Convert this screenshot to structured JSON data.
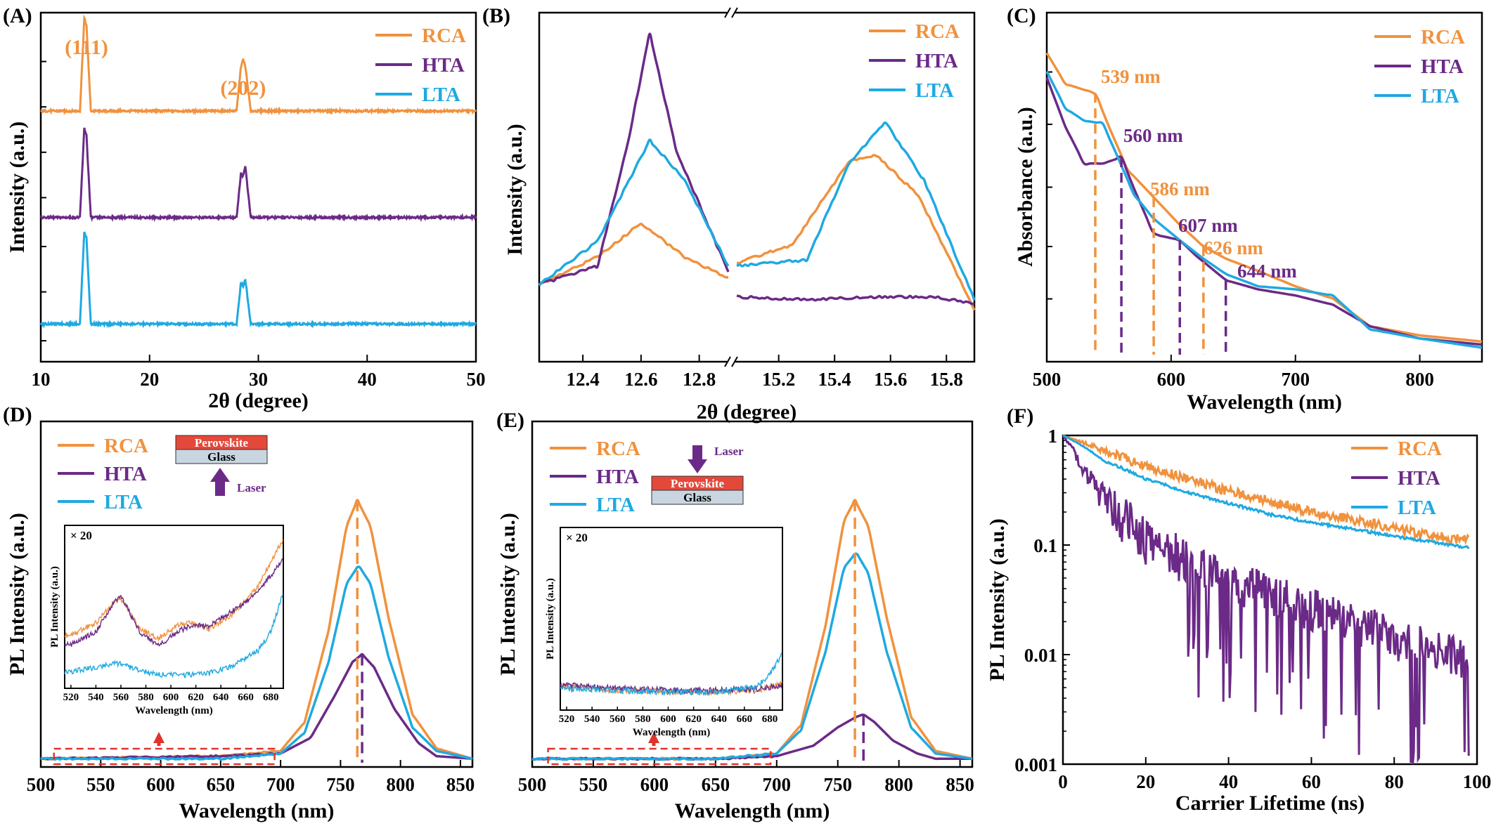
{
  "colors": {
    "RCA": "#f0923e",
    "HTA": "#6b2a87",
    "LTA": "#1fa9e1",
    "dash": "#e0332c",
    "perovskite": "#e4483a",
    "glass": "#c9d5e1"
  },
  "chart_data": [
    {
      "panel": "(A)",
      "type": "line",
      "xlabel": "2θ (degree)",
      "ylabel": "Intensity (a.u.)",
      "xlim": [
        10,
        50
      ],
      "xticks": [
        "10",
        "20",
        "30",
        "40",
        "50"
      ],
      "legend": "top-right",
      "peak_labels": [
        "(111)",
        "(202)"
      ],
      "series": [
        {
          "name": "RCA",
          "x": [
            10,
            13.6,
            14.0,
            14.2,
            14.6,
            28.0,
            28.4,
            28.6,
            28.8,
            29.3,
            50
          ],
          "y": [
            0.73,
            0.73,
            1.0,
            0.98,
            0.73,
            0.73,
            0.86,
            0.88,
            0.86,
            0.73,
            0.73
          ]
        },
        {
          "name": "HTA",
          "x": [
            10,
            13.6,
            14.0,
            14.2,
            14.6,
            28.0,
            28.4,
            28.6,
            28.8,
            29.3,
            50
          ],
          "y": [
            0.42,
            0.42,
            0.68,
            0.66,
            0.42,
            0.42,
            0.55,
            0.54,
            0.57,
            0.42,
            0.42
          ]
        },
        {
          "name": "LTA",
          "x": [
            10,
            13.6,
            14.0,
            14.2,
            14.6,
            28.0,
            28.4,
            28.6,
            28.8,
            29.3,
            50
          ],
          "y": [
            0.11,
            0.11,
            0.38,
            0.36,
            0.11,
            0.11,
            0.23,
            0.22,
            0.24,
            0.11,
            0.11
          ]
        }
      ]
    },
    {
      "panel": "(B)",
      "type": "line",
      "xlabel": "2θ (degree)",
      "ylabel": "Intensity (a.u.)",
      "broken_axis": true,
      "xticks": [
        "12.4",
        "12.6",
        "12.8",
        "15.2",
        "15.4",
        "15.6",
        "15.8"
      ],
      "legend": "top-right",
      "series": [
        {
          "name": "RCA",
          "x": [
            12.25,
            12.45,
            12.6,
            12.75,
            12.9,
            15.05,
            15.25,
            15.45,
            15.55,
            15.7,
            15.9
          ],
          "y": [
            0.16,
            0.25,
            0.36,
            0.25,
            0.18,
            0.23,
            0.29,
            0.56,
            0.58,
            0.45,
            0.08
          ]
        },
        {
          "name": "HTA",
          "x": [
            12.25,
            12.45,
            12.55,
            12.63,
            12.72,
            12.9,
            15.05,
            15.3,
            15.55,
            15.75,
            15.9
          ],
          "y": [
            0.16,
            0.22,
            0.6,
            0.98,
            0.6,
            0.2,
            0.12,
            0.11,
            0.12,
            0.12,
            0.1
          ]
        },
        {
          "name": "LTA",
          "x": [
            12.25,
            12.45,
            12.63,
            12.75,
            12.9,
            15.05,
            15.3,
            15.45,
            15.58,
            15.72,
            15.9
          ],
          "y": [
            0.16,
            0.3,
            0.63,
            0.5,
            0.22,
            0.22,
            0.24,
            0.55,
            0.69,
            0.5,
            0.11
          ]
        }
      ]
    },
    {
      "panel": "(C)",
      "type": "line",
      "xlabel": "Wavelength (nm)",
      "ylabel": "Absorbance (a.u.)",
      "xlim": [
        500,
        850
      ],
      "xticks": [
        "500",
        "600",
        "700",
        "800"
      ],
      "legend": "top-right",
      "annotations": [
        "539 nm",
        "560 nm",
        "586 nm",
        "607 nm",
        "626 nm",
        "644 nm"
      ],
      "annotation_values": [
        539,
        560,
        586,
        607,
        626,
        644
      ],
      "series": [
        {
          "name": "RCA",
          "x": [
            500,
            515,
            530,
            539,
            550,
            565,
            586,
            607,
            626,
            644,
            670,
            700,
            730,
            760,
            800,
            850
          ],
          "y": [
            0.96,
            0.86,
            0.84,
            0.83,
            0.72,
            0.58,
            0.49,
            0.4,
            0.33,
            0.29,
            0.25,
            0.2,
            0.16,
            0.07,
            0.04,
            0.02
          ]
        },
        {
          "name": "HTA",
          "x": [
            500,
            515,
            530,
            545,
            560,
            570,
            586,
            607,
            620,
            644,
            670,
            700,
            730,
            760,
            800,
            850
          ],
          "y": [
            0.88,
            0.72,
            0.6,
            0.6,
            0.62,
            0.52,
            0.37,
            0.35,
            0.3,
            0.22,
            0.19,
            0.17,
            0.14,
            0.07,
            0.03,
            0.01
          ]
        },
        {
          "name": "LTA",
          "x": [
            500,
            515,
            530,
            545,
            555,
            570,
            586,
            607,
            626,
            644,
            670,
            700,
            730,
            760,
            800,
            850
          ],
          "y": [
            0.9,
            0.78,
            0.74,
            0.73,
            0.64,
            0.5,
            0.42,
            0.35,
            0.29,
            0.24,
            0.2,
            0.19,
            0.17,
            0.06,
            0.03,
            0.0
          ]
        }
      ]
    },
    {
      "panel": "(D)",
      "type": "line",
      "xlabel": "Wavelength (nm)",
      "ylabel": "PL Intensity (a.u.)",
      "xlim": [
        500,
        860
      ],
      "xticks": [
        "500",
        "550",
        "600",
        "650",
        "700",
        "750",
        "800",
        "850"
      ],
      "legend": "top-left",
      "schematic": {
        "top": "Perovskite",
        "bottom": "Glass",
        "arrow": "Laser"
      },
      "inset": {
        "multiplier": "× 20",
        "xlabel": "Wavelength (nm)",
        "ylabel": "PL Intensity (a.u.)",
        "xticks": [
          "520",
          "540",
          "560",
          "580",
          "600",
          "620",
          "640",
          "660",
          "680"
        ],
        "series": [
          {
            "name": "RCA",
            "x": [
              520,
              540,
              555,
              560,
              575,
              590,
              605,
              615,
              630,
              650,
              670,
              690
            ],
            "y": [
              0.32,
              0.4,
              0.54,
              0.56,
              0.36,
              0.3,
              0.38,
              0.4,
              0.36,
              0.46,
              0.64,
              0.95
            ]
          },
          {
            "name": "HTA",
            "x": [
              520,
              540,
              555,
              560,
              575,
              590,
              605,
              615,
              630,
              650,
              670,
              690
            ],
            "y": [
              0.26,
              0.34,
              0.54,
              0.58,
              0.34,
              0.25,
              0.34,
              0.38,
              0.38,
              0.48,
              0.6,
              0.82
            ]
          },
          {
            "name": "LTA",
            "x": [
              520,
              540,
              555,
              560,
              575,
              590,
              610,
              630,
              650,
              670,
              680,
              690
            ],
            "y": [
              0.08,
              0.11,
              0.14,
              0.13,
              0.09,
              0.06,
              0.06,
              0.07,
              0.12,
              0.22,
              0.34,
              0.6
            ]
          }
        ]
      },
      "peaks": [
        764,
        768
      ],
      "series": [
        {
          "name": "RCA",
          "x": [
            500,
            650,
            700,
            720,
            740,
            755,
            764,
            775,
            790,
            810,
            830,
            860
          ],
          "y": [
            0.01,
            0.02,
            0.04,
            0.15,
            0.5,
            0.9,
            1.0,
            0.9,
            0.55,
            0.18,
            0.05,
            0.01
          ]
        },
        {
          "name": "HTA",
          "x": [
            500,
            650,
            700,
            725,
            745,
            760,
            768,
            778,
            795,
            815,
            830,
            860
          ],
          "y": [
            0.01,
            0.02,
            0.03,
            0.09,
            0.25,
            0.38,
            0.41,
            0.36,
            0.2,
            0.07,
            0.02,
            0.01
          ]
        },
        {
          "name": "LTA",
          "x": [
            500,
            650,
            700,
            720,
            740,
            755,
            765,
            775,
            790,
            810,
            830,
            860
          ],
          "y": [
            0.01,
            0.01,
            0.03,
            0.11,
            0.38,
            0.68,
            0.75,
            0.68,
            0.4,
            0.13,
            0.04,
            0.01
          ]
        }
      ]
    },
    {
      "panel": "(E)",
      "type": "line",
      "xlabel": "Wavelength (nm)",
      "ylabel": "PL Intensity (a.u.)",
      "xlim": [
        500,
        860
      ],
      "xticks": [
        "500",
        "550",
        "600",
        "650",
        "700",
        "750",
        "800",
        "850"
      ],
      "legend": "top-left",
      "schematic": {
        "top": "Perovskite",
        "bottom": "Glass",
        "arrow": "Laser"
      },
      "inset": {
        "multiplier": "× 20",
        "xlabel": "Wavelength (nm)",
        "ylabel": "PL Intensity (a.u.)",
        "xticks": [
          "520",
          "540",
          "560",
          "580",
          "600",
          "620",
          "640",
          "660",
          "680"
        ],
        "series": [
          {
            "name": "RCA",
            "x": [
              520,
              560,
              600,
              640,
              670,
              690
            ],
            "y": [
              0.11,
              0.09,
              0.08,
              0.08,
              0.09,
              0.13
            ]
          },
          {
            "name": "HTA",
            "x": [
              520,
              560,
              600,
              640,
              670,
              690
            ],
            "y": [
              0.12,
              0.1,
              0.09,
              0.09,
              0.1,
              0.12
            ]
          },
          {
            "name": "LTA",
            "x": [
              520,
              560,
              600,
              640,
              670,
              680,
              690
            ],
            "y": [
              0.1,
              0.09,
              0.08,
              0.08,
              0.11,
              0.18,
              0.3
            ]
          }
        ]
      },
      "peaks": [
        764,
        771
      ],
      "series": [
        {
          "name": "RCA",
          "x": [
            500,
            650,
            700,
            720,
            740,
            755,
            764,
            775,
            790,
            810,
            830,
            860
          ],
          "y": [
            0.01,
            0.01,
            0.03,
            0.14,
            0.52,
            0.92,
            1.0,
            0.9,
            0.55,
            0.17,
            0.04,
            0.01
          ]
        },
        {
          "name": "HTA",
          "x": [
            500,
            650,
            700,
            730,
            750,
            765,
            771,
            780,
            795,
            815,
            830,
            860
          ],
          "y": [
            0.01,
            0.01,
            0.02,
            0.06,
            0.13,
            0.17,
            0.18,
            0.15,
            0.08,
            0.03,
            0.01,
            0.01
          ]
        },
        {
          "name": "LTA",
          "x": [
            500,
            650,
            700,
            720,
            740,
            755,
            765,
            775,
            790,
            810,
            830,
            860
          ],
          "y": [
            0.01,
            0.01,
            0.03,
            0.12,
            0.42,
            0.74,
            0.8,
            0.72,
            0.42,
            0.13,
            0.03,
            0.01
          ]
        }
      ]
    },
    {
      "panel": "(F)",
      "type": "line",
      "xlabel": "Carrier Lifetime (ns)",
      "ylabel": "PL Intensity (a.u.)",
      "yscale": "log",
      "xlim": [
        0,
        100
      ],
      "ylim": [
        0.001,
        1
      ],
      "xticks": [
        "0",
        "20",
        "40",
        "60",
        "80",
        "100"
      ],
      "yticks": [
        "1",
        "0.1",
        "0.01",
        "0.001"
      ],
      "legend": "top-right",
      "series": [
        {
          "name": "RCA",
          "x": [
            0,
            10,
            20,
            30,
            40,
            50,
            60,
            70,
            80,
            90,
            98
          ],
          "y": [
            1.0,
            0.72,
            0.52,
            0.4,
            0.31,
            0.25,
            0.2,
            0.17,
            0.14,
            0.12,
            0.11
          ]
        },
        {
          "name": "HTA",
          "x": [
            0,
            5,
            10,
            15,
            20,
            30,
            40,
            50,
            60,
            70,
            80,
            90,
            98
          ],
          "y": [
            1.0,
            0.45,
            0.25,
            0.16,
            0.11,
            0.066,
            0.045,
            0.032,
            0.024,
            0.018,
            0.013,
            0.01,
            0.008
          ]
        },
        {
          "name": "LTA",
          "x": [
            0,
            10,
            20,
            30,
            40,
            50,
            60,
            70,
            80,
            90,
            98
          ],
          "y": [
            1.0,
            0.58,
            0.4,
            0.3,
            0.24,
            0.19,
            0.16,
            0.14,
            0.12,
            0.105,
            0.095
          ]
        }
      ]
    }
  ]
}
